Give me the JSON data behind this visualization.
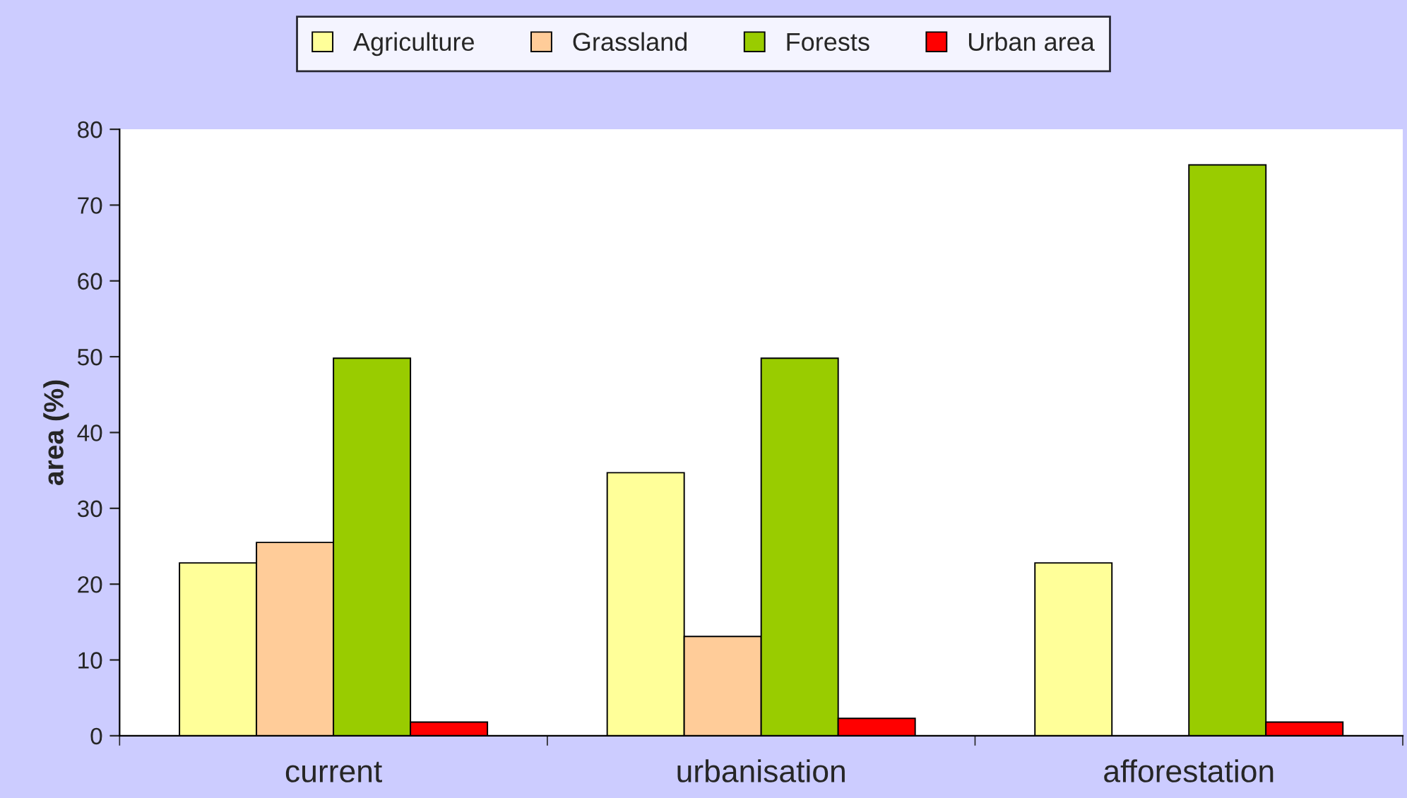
{
  "chart_data": {
    "type": "bar",
    "ylabel": "area (%)",
    "categories": [
      "current",
      "urbanisation",
      "afforestation"
    ],
    "series": [
      {
        "name": "Agriculture",
        "color": "#ffff99",
        "values": [
          22.8,
          34.7,
          22.8
        ]
      },
      {
        "name": "Grassland",
        "color": "#ffcc99",
        "values": [
          25.5,
          13.1,
          null
        ]
      },
      {
        "name": "Forests",
        "color": "#99cc00",
        "values": [
          49.8,
          49.8,
          75.3
        ]
      },
      {
        "name": "Urban area",
        "color": "#ff0000",
        "values": [
          1.8,
          2.3,
          1.8
        ]
      }
    ],
    "ylim": [
      0,
      80
    ],
    "yticks": [
      0,
      10,
      20,
      30,
      40,
      50,
      60,
      70,
      80
    ],
    "grid": false,
    "legend": "top"
  }
}
